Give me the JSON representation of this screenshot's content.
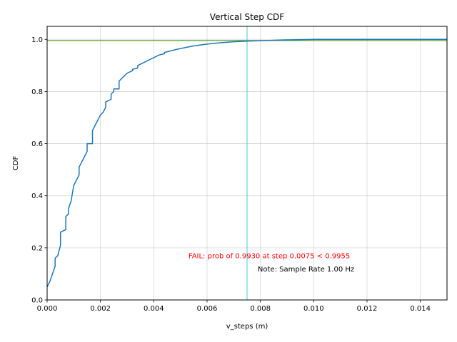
{
  "chart_data": {
    "type": "line",
    "title": "Vertical Step CDF",
    "xlabel": "v_steps (m)",
    "ylabel": "CDF",
    "xlim": [
      0,
      0.015
    ],
    "ylim": [
      0,
      1.05
    ],
    "grid": true,
    "x_ticks": [
      0,
      0.002,
      0.004,
      0.006,
      0.008,
      0.01,
      0.012,
      0.014
    ],
    "x_tick_labels": [
      "0.000",
      "0.002",
      "0.004",
      "0.006",
      "0.008",
      "0.010",
      "0.012",
      "0.014"
    ],
    "y_ticks": [
      0,
      0.2,
      0.4,
      0.6,
      0.8,
      1.0
    ],
    "y_tick_labels": [
      "0.0",
      "0.2",
      "0.4",
      "0.6",
      "0.8",
      "1.0"
    ],
    "series": [
      {
        "color": "#1f77b4",
        "x": [
          0,
          0.0001,
          0.0002,
          0.0003,
          0.0003,
          0.0004,
          0.0005,
          0.0005,
          0.0007,
          0.0007,
          0.0008,
          0.0008,
          0.0009,
          0.001,
          0.0012,
          0.0012,
          0.0013,
          0.0014,
          0.0015,
          0.0015,
          0.0017,
          0.0017,
          0.0018,
          0.002,
          0.0021,
          0.0022,
          0.0022,
          0.0024,
          0.0024,
          0.0025,
          0.0025,
          0.0027,
          0.0027,
          0.0028,
          0.003,
          0.0031,
          0.0032,
          0.0032,
          0.0034,
          0.0034,
          0.0036,
          0.0038,
          0.004,
          0.0042,
          0.0044,
          0.0044,
          0.0048,
          0.005,
          0.0055,
          0.006,
          0.0065,
          0.007,
          0.0075,
          0.008,
          0.009,
          0.01,
          0.015
        ],
        "y": [
          0.05,
          0.07,
          0.1,
          0.13,
          0.16,
          0.17,
          0.21,
          0.26,
          0.27,
          0.32,
          0.33,
          0.35,
          0.38,
          0.44,
          0.48,
          0.51,
          0.53,
          0.55,
          0.57,
          0.6,
          0.6,
          0.65,
          0.67,
          0.71,
          0.72,
          0.74,
          0.76,
          0.77,
          0.79,
          0.8,
          0.81,
          0.81,
          0.84,
          0.85,
          0.87,
          0.875,
          0.88,
          0.885,
          0.89,
          0.9,
          0.91,
          0.92,
          0.93,
          0.94,
          0.945,
          0.95,
          0.96,
          0.965,
          0.975,
          0.982,
          0.987,
          0.991,
          0.993,
          0.995,
          0.998,
          1.0,
          1.0
        ]
      }
    ],
    "reference_lines": [
      {
        "orientation": "horizontal",
        "value": 0.9955,
        "color": "#ff7f0e"
      },
      {
        "orientation": "horizontal",
        "value": 0.9955,
        "color": "#2ca02c"
      },
      {
        "orientation": "vertical",
        "value": 0.0075,
        "color": "#17becf"
      }
    ],
    "annotations": [
      {
        "text": "FAIL: prob of 0.9930 at step 0.0075 < 0.9955",
        "x": 0.0053,
        "y": 0.16,
        "color": "#ff0000"
      },
      {
        "text": "Note: Sample Rate 1.00 Hz",
        "x": 0.0079,
        "y": 0.11,
        "color": "#000000"
      }
    ]
  }
}
